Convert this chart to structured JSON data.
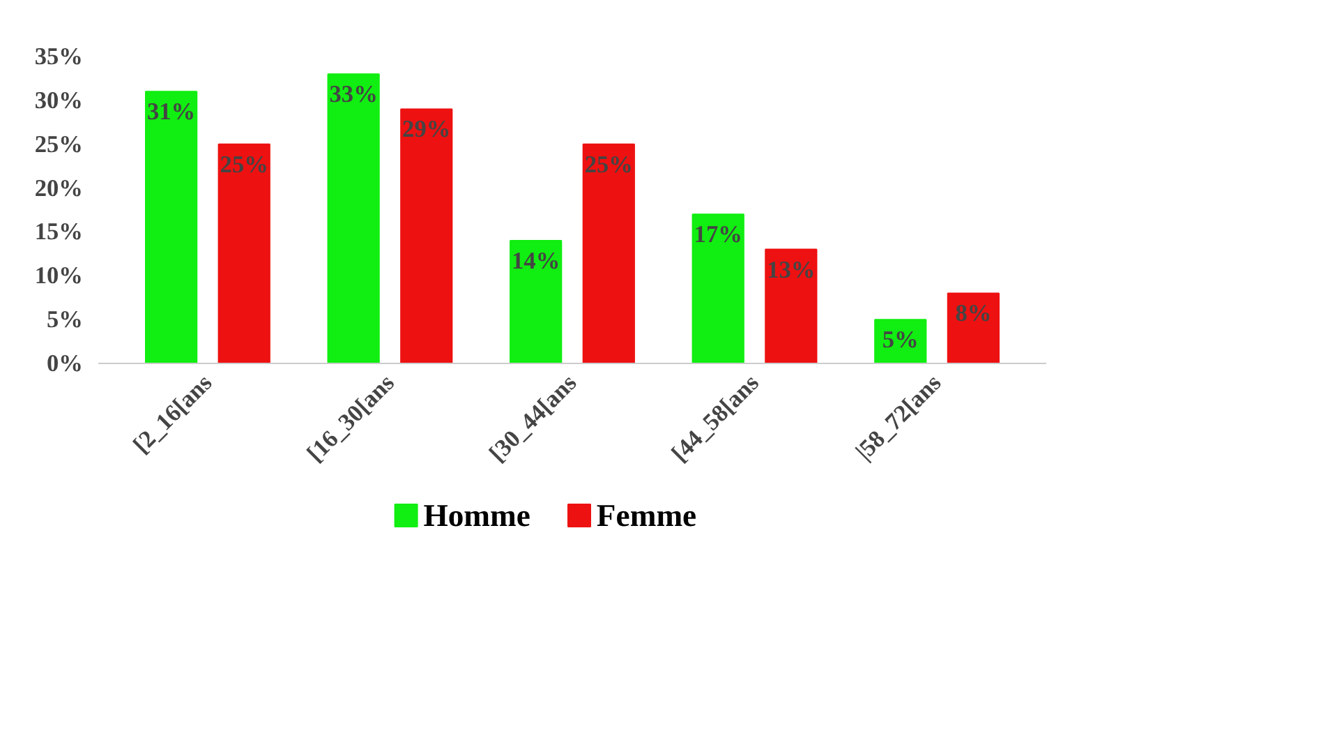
{
  "chart_data": {
    "type": "bar",
    "categories": [
      "[2_16[ans",
      "[16_30[ans",
      "[30_44[ans",
      "[44_58[ans",
      "|58_72[ans"
    ],
    "series": [
      {
        "name": "Homme",
        "color": "#11ee11",
        "values": [
          31,
          33,
          14,
          17,
          5
        ],
        "value_labels": [
          "31%",
          "33%",
          "14%",
          "17%",
          "5%"
        ]
      },
      {
        "name": "Femme",
        "color": "#ee1111",
        "values": [
          25,
          29,
          25,
          13,
          8
        ],
        "value_labels": [
          "25%",
          "29%",
          "25%",
          "13%",
          "8%"
        ]
      }
    ],
    "ylim": [
      0,
      35
    ],
    "yticks": [
      {
        "value": 0,
        "label": "0%"
      },
      {
        "value": 5,
        "label": "5%"
      },
      {
        "value": 10,
        "label": "10%"
      },
      {
        "value": 15,
        "label": "15%"
      },
      {
        "value": 20,
        "label": "20%"
      },
      {
        "value": 25,
        "label": "25%"
      },
      {
        "value": 30,
        "label": "30%"
      },
      {
        "value": 35,
        "label": "35%"
      }
    ],
    "grid": false,
    "legend": "bottom"
  }
}
